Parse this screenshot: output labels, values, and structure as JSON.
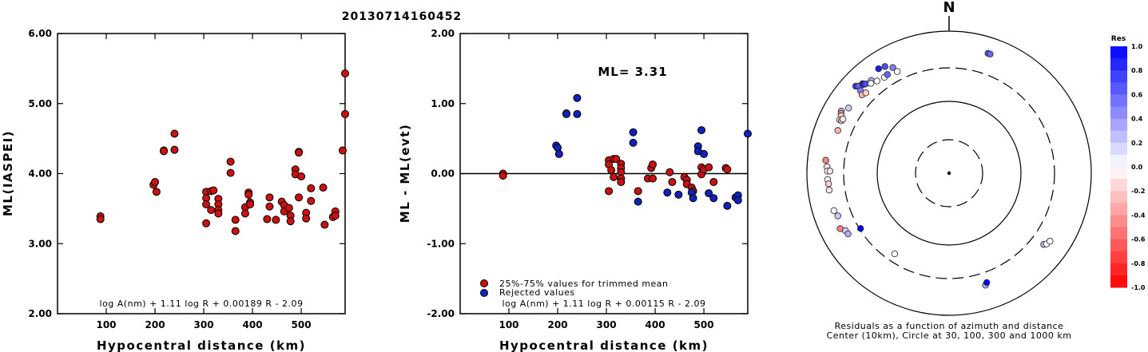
{
  "figure_title": "20130714160452",
  "chart_data": [
    {
      "type": "scatter",
      "xlabel": "Hypocentral distance (km)",
      "ylabel": "ML(IASPEI)",
      "xlim": [
        0,
        590
      ],
      "ylim": [
        2.0,
        6.0
      ],
      "xticks": [
        "100",
        "200",
        "300",
        "400",
        "500"
      ],
      "yticks": [
        "2.00",
        "3.00",
        "4.00",
        "5.00",
        "6.00"
      ],
      "formula": "log A(nm) + 1.11 log R + 0.00189 R - 2.09",
      "marker_color": "#cc1111",
      "points": [
        [
          88,
          3.39
        ],
        [
          88,
          3.35
        ],
        [
          197,
          3.84
        ],
        [
          200,
          3.88
        ],
        [
          203,
          3.74
        ],
        [
          218,
          4.33
        ],
        [
          218,
          4.32
        ],
        [
          240,
          4.57
        ],
        [
          240,
          4.34
        ],
        [
          305,
          3.74
        ],
        [
          305,
          3.65
        ],
        [
          305,
          3.56
        ],
        [
          305,
          3.29
        ],
        [
          315,
          3.75
        ],
        [
          315,
          3.48
        ],
        [
          320,
          3.76
        ],
        [
          330,
          3.64
        ],
        [
          330,
          3.56
        ],
        [
          330,
          3.48
        ],
        [
          330,
          3.43
        ],
        [
          355,
          4.17
        ],
        [
          355,
          4.01
        ],
        [
          365,
          3.34
        ],
        [
          365,
          3.18
        ],
        [
          385,
          3.52
        ],
        [
          385,
          3.43
        ],
        [
          392,
          3.73
        ],
        [
          392,
          3.7
        ],
        [
          395,
          3.59
        ],
        [
          395,
          3.56
        ],
        [
          430,
          3.35
        ],
        [
          435,
          3.66
        ],
        [
          435,
          3.53
        ],
        [
          448,
          3.34
        ],
        [
          460,
          3.6
        ],
        [
          465,
          3.55
        ],
        [
          465,
          3.46
        ],
        [
          475,
          3.51
        ],
        [
          478,
          3.4
        ],
        [
          478,
          3.32
        ],
        [
          488,
          4.06
        ],
        [
          488,
          3.99
        ],
        [
          495,
          4.31
        ],
        [
          495,
          4.3
        ],
        [
          495,
          3.66
        ],
        [
          500,
          3.96
        ],
        [
          510,
          3.44
        ],
        [
          510,
          3.36
        ],
        [
          520,
          3.79
        ],
        [
          520,
          3.61
        ],
        [
          545,
          3.8
        ],
        [
          548,
          3.27
        ],
        [
          565,
          3.38
        ],
        [
          570,
          3.46
        ],
        [
          570,
          3.4
        ],
        [
          585,
          4.33
        ],
        [
          590,
          5.43
        ],
        [
          590,
          4.85
        ]
      ]
    },
    {
      "type": "scatter",
      "xlabel": "Hypocentral distance (km)",
      "ylabel": "ML - ML(evt)",
      "xlim": [
        0,
        590
      ],
      "ylim": [
        -2.0,
        2.0
      ],
      "xticks": [
        "100",
        "200",
        "300",
        "400",
        "500"
      ],
      "yticks": [
        "-2.00",
        "-1.00",
        "0.00",
        "1.00",
        "2.00"
      ],
      "annotation": "ML= 3.31",
      "formula": "log A(nm) + 1.11 log R + 0.00115 R - 2.09",
      "series": [
        {
          "name": "25%-75% values for trimmed mean",
          "color": "#cc1111",
          "points": [
            [
              88,
              0.0
            ],
            [
              88,
              -0.03
            ],
            [
              305,
              -0.25
            ],
            [
              305,
              0.19
            ],
            [
              305,
              0.13
            ],
            [
              310,
              0.05
            ],
            [
              315,
              0.21
            ],
            [
              315,
              -0.05
            ],
            [
              320,
              0.21
            ],
            [
              330,
              0.14
            ],
            [
              330,
              0.08
            ],
            [
              330,
              0.02
            ],
            [
              330,
              -0.07
            ],
            [
              330,
              -0.12
            ],
            [
              365,
              -0.25
            ],
            [
              385,
              -0.07
            ],
            [
              392,
              0.08
            ],
            [
              395,
              0.13
            ],
            [
              395,
              -0.07
            ],
            [
              430,
              0.02
            ],
            [
              435,
              -0.12
            ],
            [
              460,
              -0.05
            ],
            [
              465,
              -0.09
            ],
            [
              465,
              -0.15
            ],
            [
              475,
              -0.2
            ],
            [
              478,
              -0.25
            ],
            [
              495,
              0.09
            ],
            [
              495,
              -0.01
            ],
            [
              500,
              0.06
            ],
            [
              510,
              0.09
            ],
            [
              520,
              -0.12
            ],
            [
              545,
              0.08
            ],
            [
              548,
              0.06
            ]
          ]
        },
        {
          "name": "Rejected values",
          "color": "#1122bb",
          "points": [
            [
              197,
              0.4
            ],
            [
              200,
              0.37
            ],
            [
              203,
              0.28
            ],
            [
              218,
              0.86
            ],
            [
              218,
              0.85
            ],
            [
              240,
              1.08
            ],
            [
              240,
              0.85
            ],
            [
              355,
              0.59
            ],
            [
              355,
              0.44
            ],
            [
              365,
              -0.4
            ],
            [
              425,
              -0.27
            ],
            [
              448,
              -0.3
            ],
            [
              475,
              -0.27
            ],
            [
              478,
              -0.35
            ],
            [
              488,
              0.39
            ],
            [
              488,
              0.32
            ],
            [
              495,
              0.62
            ],
            [
              500,
              0.28
            ],
            [
              510,
              -0.28
            ],
            [
              520,
              -0.35
            ],
            [
              548,
              -0.46
            ],
            [
              565,
              -0.34
            ],
            [
              570,
              -0.31
            ],
            [
              570,
              -0.38
            ],
            [
              590,
              0.57
            ]
          ]
        }
      ]
    },
    {
      "type": "scatter",
      "subtype": "polar-azimuth",
      "north_label": "N",
      "caption_line1": "Residuals as a function of azimuth and distance",
      "caption_line2": "Center (10km), Circle at 30, 100, 300 and 1000 km",
      "colorbar_title": "Res",
      "colorbar_ticks": [
        "1.0",
        "0.8",
        "0.6",
        "0.4",
        "0.2",
        "0.0",
        "-0.2",
        "-0.4",
        "-0.6",
        "-0.8",
        "-1.0"
      ],
      "stations": [
        {
          "az": 18,
          "dist": 590,
          "res": 0.7
        },
        {
          "az": 19,
          "dist": 590,
          "res": 0.6
        },
        {
          "az": 326,
          "dist": 590,
          "res": 0.9
        },
        {
          "az": 329,
          "dist": 560,
          "res": 0.7
        },
        {
          "az": 313,
          "dist": 620,
          "res": 0.8
        },
        {
          "az": 314,
          "dist": 580,
          "res": 0.6
        },
        {
          "az": 316,
          "dist": 560,
          "res": 0.9
        },
        {
          "az": 316,
          "dist": 540,
          "res": 0.9
        },
        {
          "az": 317,
          "dist": 520,
          "res": 0.7
        },
        {
          "az": 313,
          "dist": 500,
          "res": 0.5
        },
        {
          "az": 320,
          "dist": 500,
          "res": 0.3
        },
        {
          "az": 319,
          "dist": 470,
          "res": 0.0
        },
        {
          "az": 312,
          "dist": 440,
          "res": -0.3
        },
        {
          "az": 314,
          "dist": 420,
          "res": -0.2
        },
        {
          "az": 322,
          "dist": 440,
          "res": 0.0
        },
        {
          "az": 326,
          "dist": 420,
          "res": 0.0
        },
        {
          "az": 333,
          "dist": 400,
          "res": 0.0
        },
        {
          "az": 332,
          "dist": 480,
          "res": 0.5
        },
        {
          "az": 328,
          "dist": 430,
          "res": 0.6
        },
        {
          "az": 300,
          "dist": 560,
          "res": 0.3
        },
        {
          "az": 299,
          "dist": 540,
          "res": -0.4
        },
        {
          "az": 298,
          "dist": 520,
          "res": -0.2
        },
        {
          "az": 296,
          "dist": 510,
          "res": 0.0
        },
        {
          "az": 303,
          "dist": 480,
          "res": 0.2
        },
        {
          "az": 296,
          "dist": 480,
          "res": -0.3
        },
        {
          "az": 297,
          "dist": 470,
          "res": -0.1
        },
        {
          "az": 291,
          "dist": 470,
          "res": -0.3
        },
        {
          "az": 276,
          "dist": 550,
          "res": -0.5
        },
        {
          "az": 273,
          "dist": 520,
          "res": -0.1
        },
        {
          "az": 271,
          "dist": 510,
          "res": 0.0
        },
        {
          "az": 271,
          "dist": 470,
          "res": -0.1
        },
        {
          "az": 267,
          "dist": 510,
          "res": 0.0
        },
        {
          "az": 265,
          "dist": 500,
          "res": -0.2
        },
        {
          "az": 262,
          "dist": 500,
          "res": -0.1
        },
        {
          "az": 252,
          "dist": 500,
          "res": 0.0
        },
        {
          "az": 249,
          "dist": 470,
          "res": 0.2
        },
        {
          "az": 243,
          "dist": 520,
          "res": -0.5
        },
        {
          "az": 241,
          "dist": 460,
          "res": 0.2
        },
        {
          "az": 239,
          "dist": 450,
          "res": 0.3
        },
        {
          "az": 238,
          "dist": 290,
          "res": 1.0
        },
        {
          "az": 214,
          "dist": 230,
          "res": 0.0
        },
        {
          "az": 162,
          "dist": 450,
          "res": 0.3
        },
        {
          "az": 161,
          "dist": 420,
          "res": 1.0
        },
        {
          "az": 127,
          "dist": 460,
          "res": 0.3
        },
        {
          "az": 126,
          "dist": 490,
          "res": 0.0
        },
        {
          "az": 124,
          "dist": 510,
          "res": 0.0
        }
      ]
    }
  ]
}
